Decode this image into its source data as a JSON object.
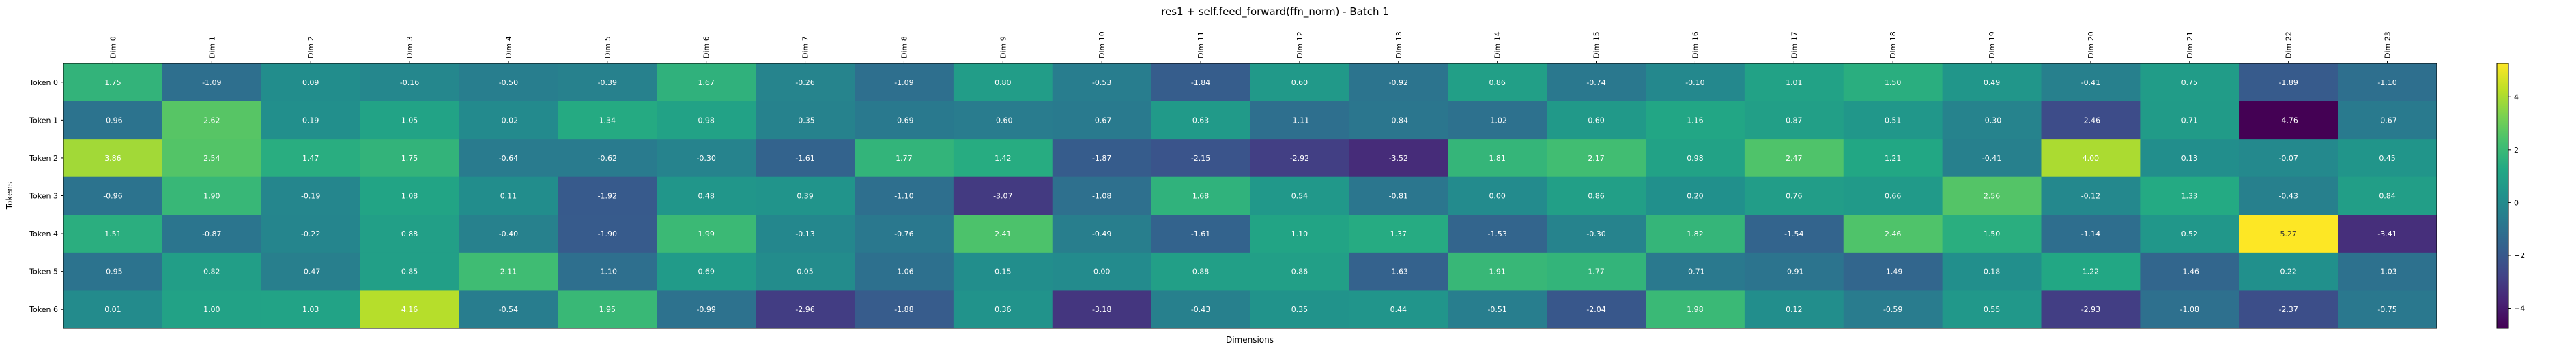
{
  "chart_data": {
    "type": "heatmap",
    "title": "res1 + self.feed_forward(ffn_norm) - Batch 1",
    "xlabel": "Dimensions",
    "ylabel": "Tokens",
    "columns": [
      "Dim 0",
      "Dim 1",
      "Dim 2",
      "Dim 3",
      "Dim 4",
      "Dim 5",
      "Dim 6",
      "Dim 7",
      "Dim 8",
      "Dim 9",
      "Dim 10",
      "Dim 11",
      "Dim 12",
      "Dim 13",
      "Dim 14",
      "Dim 15",
      "Dim 16",
      "Dim 17",
      "Dim 18",
      "Dim 19",
      "Dim 20",
      "Dim 21",
      "Dim 22",
      "Dim 23"
    ],
    "rows": [
      "Token 0",
      "Token 1",
      "Token 2",
      "Token 3",
      "Token 4",
      "Token 5",
      "Token 6"
    ],
    "values": [
      [
        1.75,
        -1.09,
        0.09,
        -0.16,
        -0.5,
        -0.39,
        1.67,
        -0.26,
        -1.09,
        0.8,
        -0.53,
        -1.84,
        0.6,
        -0.92,
        0.86,
        -0.74,
        -0.1,
        1.01,
        1.5,
        0.49,
        -0.41,
        0.75,
        -1.89,
        -1.1
      ],
      [
        -0.96,
        2.62,
        0.19,
        1.05,
        -0.02,
        1.34,
        0.98,
        -0.35,
        -0.69,
        -0.6,
        -0.67,
        0.63,
        -1.11,
        -0.84,
        -1.02,
        0.6,
        1.16,
        0.87,
        0.51,
        -0.3,
        -2.46,
        0.71,
        -4.76,
        -0.67
      ],
      [
        3.86,
        2.54,
        1.47,
        1.75,
        -0.64,
        -0.62,
        -0.3,
        -1.61,
        1.77,
        1.42,
        -1.87,
        -2.15,
        -2.92,
        -3.52,
        1.81,
        2.17,
        0.98,
        2.47,
        1.21,
        -0.41,
        4.0,
        0.13,
        -0.07,
        0.45
      ],
      [
        -0.96,
        1.9,
        -0.19,
        1.08,
        0.11,
        -1.92,
        0.48,
        0.39,
        -1.1,
        -3.07,
        -1.08,
        1.68,
        0.54,
        -0.81,
        -0.0,
        0.86,
        0.2,
        0.76,
        0.66,
        2.56,
        -0.12,
        1.33,
        -0.43,
        0.84
      ],
      [
        1.51,
        -0.87,
        -0.22,
        0.88,
        -0.4,
        -1.9,
        1.99,
        -0.13,
        -0.76,
        2.41,
        -0.49,
        -1.61,
        1.1,
        1.37,
        -1.53,
        -0.3,
        1.82,
        -1.54,
        2.46,
        1.5,
        -1.14,
        0.52,
        5.27,
        -3.41
      ],
      [
        -0.95,
        0.82,
        -0.47,
        0.85,
        2.11,
        -1.1,
        0.69,
        0.05,
        -1.06,
        0.15,
        -0.0,
        0.88,
        0.86,
        -1.63,
        1.91,
        1.77,
        -0.71,
        -0.91,
        -1.49,
        0.18,
        1.22,
        -1.46,
        0.22,
        -1.03
      ],
      [
        0.01,
        1.0,
        1.03,
        4.16,
        -0.54,
        1.95,
        -0.99,
        -2.96,
        -1.88,
        0.36,
        -3.18,
        -0.43,
        0.35,
        0.44,
        -0.51,
        -2.04,
        1.98,
        0.12,
        -0.59,
        0.55,
        -2.93,
        -1.08,
        -2.37,
        -0.75
      ]
    ],
    "colormap": "viridis",
    "vmin": -4.76,
    "vmax": 5.27,
    "colorbar_ticks": [
      -4,
      -2,
      0,
      2,
      4
    ],
    "grid": false
  }
}
